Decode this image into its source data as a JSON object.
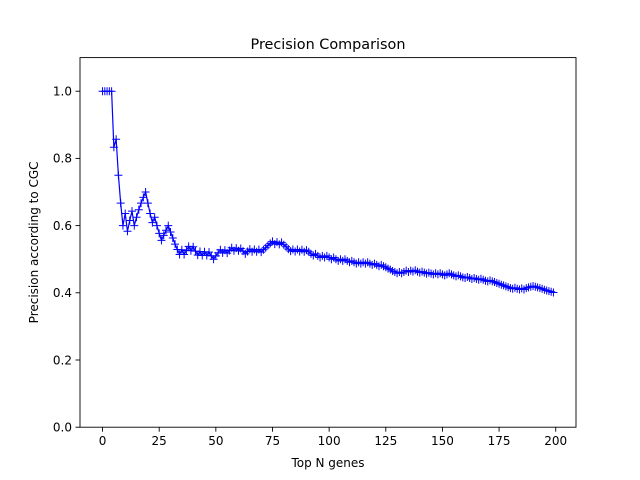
{
  "chart_data": {
    "type": "line",
    "title": "Precision Comparison",
    "xlabel": "Top N genes",
    "ylabel": "Precision according to CGC",
    "xlim": [
      -9.95,
      208.95
    ],
    "ylim": [
      0.0,
      1.1
    ],
    "xticks": [
      0,
      25,
      50,
      75,
      100,
      125,
      150,
      175,
      200
    ],
    "yticks": [
      0.0,
      0.2,
      0.4,
      0.6,
      0.8,
      1.0
    ],
    "xtick_labels": [
      "0",
      "25",
      "50",
      "75",
      "100",
      "125",
      "150",
      "175",
      "200"
    ],
    "ytick_labels": [
      "0.0",
      "0.2",
      "0.4",
      "0.6",
      "0.8",
      "1.0"
    ],
    "grid": false,
    "legend": "none",
    "series": [
      {
        "color": "#0000ff",
        "marker": "+",
        "x": [
          0,
          1,
          2,
          3,
          4,
          5,
          6,
          7,
          8,
          9,
          10,
          11,
          12,
          13,
          14,
          15,
          16,
          17,
          18,
          19,
          20,
          21,
          22,
          23,
          24,
          25,
          26,
          27,
          28,
          29,
          30,
          31,
          32,
          33,
          34,
          35,
          36,
          37,
          38,
          39,
          40,
          41,
          42,
          43,
          44,
          45,
          46,
          47,
          48,
          49,
          50,
          51,
          52,
          53,
          54,
          55,
          56,
          57,
          58,
          59,
          60,
          61,
          62,
          63,
          64,
          65,
          66,
          67,
          68,
          69,
          70,
          71,
          72,
          73,
          74,
          75,
          76,
          77,
          78,
          79,
          80,
          81,
          82,
          83,
          84,
          85,
          86,
          87,
          88,
          89,
          90,
          91,
          92,
          93,
          94,
          95,
          96,
          97,
          98,
          99,
          100,
          101,
          102,
          103,
          104,
          105,
          106,
          107,
          108,
          109,
          110,
          111,
          112,
          113,
          114,
          115,
          116,
          117,
          118,
          119,
          120,
          121,
          122,
          123,
          124,
          125,
          126,
          127,
          128,
          129,
          130,
          131,
          132,
          133,
          134,
          135,
          136,
          137,
          138,
          139,
          140,
          141,
          142,
          143,
          144,
          145,
          146,
          147,
          148,
          149,
          150,
          151,
          152,
          153,
          154,
          155,
          156,
          157,
          158,
          159,
          160,
          161,
          162,
          163,
          164,
          165,
          166,
          167,
          168,
          169,
          170,
          171,
          172,
          173,
          174,
          175,
          176,
          177,
          178,
          179,
          180,
          181,
          182,
          183,
          184,
          185,
          186,
          187,
          188,
          189,
          190,
          191,
          192,
          193,
          194,
          195,
          196,
          197,
          198,
          199
        ],
        "y": [
          1.0,
          1.0,
          1.0,
          1.0,
          1.0,
          0.833,
          0.857,
          0.75,
          0.667,
          0.6,
          0.636,
          0.583,
          0.615,
          0.643,
          0.6,
          0.625,
          0.647,
          0.667,
          0.684,
          0.7,
          0.667,
          0.636,
          0.609,
          0.625,
          0.6,
          0.577,
          0.556,
          0.571,
          0.586,
          0.6,
          0.581,
          0.563,
          0.545,
          0.529,
          0.514,
          0.528,
          0.514,
          0.526,
          0.538,
          0.525,
          0.537,
          0.524,
          0.512,
          0.523,
          0.511,
          0.522,
          0.511,
          0.521,
          0.51,
          0.5,
          0.51,
          0.519,
          0.528,
          0.519,
          0.527,
          0.518,
          0.526,
          0.534,
          0.525,
          0.533,
          0.525,
          0.532,
          0.524,
          0.516,
          0.523,
          0.53,
          0.522,
          0.529,
          0.522,
          0.529,
          0.521,
          0.528,
          0.534,
          0.541,
          0.547,
          0.553,
          0.545,
          0.551,
          0.544,
          0.55,
          0.543,
          0.537,
          0.53,
          0.524,
          0.529,
          0.523,
          0.529,
          0.523,
          0.528,
          0.522,
          0.527,
          0.522,
          0.516,
          0.511,
          0.516,
          0.51,
          0.505,
          0.51,
          0.505,
          0.51,
          0.505,
          0.5,
          0.505,
          0.5,
          0.495,
          0.5,
          0.495,
          0.5,
          0.495,
          0.491,
          0.495,
          0.491,
          0.487,
          0.491,
          0.487,
          0.491,
          0.487,
          0.491,
          0.487,
          0.483,
          0.487,
          0.483,
          0.479,
          0.483,
          0.479,
          0.476,
          0.472,
          0.469,
          0.465,
          0.462,
          0.458,
          0.462,
          0.458,
          0.462,
          0.466,
          0.462,
          0.466,
          0.463,
          0.467,
          0.463,
          0.46,
          0.463,
          0.46,
          0.457,
          0.46,
          0.457,
          0.455,
          0.458,
          0.455,
          0.458,
          0.455,
          0.452,
          0.455,
          0.458,
          0.455,
          0.452,
          0.449,
          0.452,
          0.449,
          0.446,
          0.444,
          0.447,
          0.444,
          0.441,
          0.444,
          0.441,
          0.439,
          0.442,
          0.439,
          0.436,
          0.434,
          0.437,
          0.434,
          0.432,
          0.429,
          0.427,
          0.424,
          0.422,
          0.419,
          0.417,
          0.414,
          0.412,
          0.415,
          0.412,
          0.41,
          0.413,
          0.41,
          0.414,
          0.416,
          0.418,
          0.42,
          0.418,
          0.416,
          0.414,
          0.412,
          0.409,
          0.407,
          0.405,
          0.403,
          0.401
        ]
      }
    ]
  }
}
